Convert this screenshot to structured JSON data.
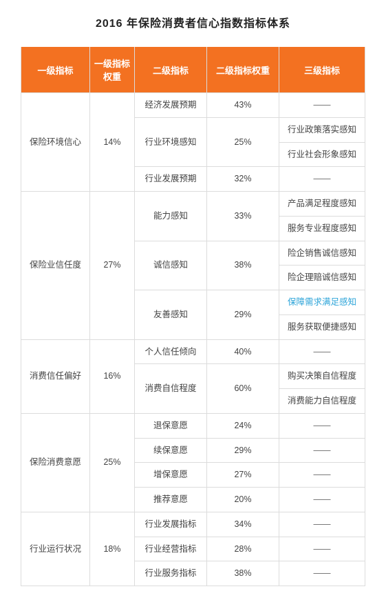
{
  "title": "2016 年保险消费者信心指数指标体系",
  "colors": {
    "header_bg": "#f37121",
    "header_text": "#ffffff",
    "border": "#dcdcdc",
    "text": "#444444",
    "highlight": "#2aa3d8",
    "background": "#ffffff"
  },
  "columns": [
    {
      "label": "一级指标",
      "width": "20%"
    },
    {
      "label": "一级指标权重",
      "width": "13%"
    },
    {
      "label": "二级指标",
      "width": "21%"
    },
    {
      "label": "二级指标权重",
      "width": "21%"
    },
    {
      "label": "三级指标",
      "width": "25%"
    }
  ],
  "dash": "——",
  "groups": [
    {
      "l1_label": "保险环境信心",
      "l1_weight": "14%",
      "l2": [
        {
          "label": "经济发展预期",
          "weight": "43%",
          "l3": [
            "——"
          ]
        },
        {
          "label": "行业环境感知",
          "weight": "25%",
          "l3": [
            "行业政策落实感知",
            "行业社会形象感知"
          ]
        },
        {
          "label": "行业发展预期",
          "weight": "32%",
          "l3": [
            "——"
          ]
        }
      ]
    },
    {
      "l1_label": "保险业信任度",
      "l1_weight": "27%",
      "l2": [
        {
          "label": "能力感知",
          "weight": "33%",
          "l3": [
            "产品满足程度感知",
            "服务专业程度感知"
          ]
        },
        {
          "label": "诚信感知",
          "weight": "38%",
          "l3": [
            "险企销售诚信感知",
            "险企理赔诚信感知"
          ]
        },
        {
          "label": "友善感知",
          "weight": "29%",
          "l3": [
            "保障需求满足感知",
            "服务获取便捷感知"
          ],
          "hl_index": 0
        }
      ]
    },
    {
      "l1_label": "消费信任偏好",
      "l1_weight": "16%",
      "l2": [
        {
          "label": "个人信任倾向",
          "weight": "40%",
          "l3": [
            "——"
          ]
        },
        {
          "label": "消费自信程度",
          "weight": "60%",
          "l3": [
            "购买决策自信程度",
            "消费能力自信程度"
          ]
        }
      ]
    },
    {
      "l1_label": "保险消费意愿",
      "l1_weight": "25%",
      "l2": [
        {
          "label": "退保意愿",
          "weight": "24%",
          "l3": [
            "——"
          ]
        },
        {
          "label": "续保意愿",
          "weight": "29%",
          "l3": [
            "——"
          ]
        },
        {
          "label": "增保意愿",
          "weight": "27%",
          "l3": [
            "——"
          ]
        },
        {
          "label": "推荐意愿",
          "weight": "20%",
          "l3": [
            "——"
          ]
        }
      ]
    },
    {
      "l1_label": "行业运行状况",
      "l1_weight": "18%",
      "l2": [
        {
          "label": "行业发展指标",
          "weight": "34%",
          "l3": [
            "——"
          ]
        },
        {
          "label": "行业经营指标",
          "weight": "28%",
          "l3": [
            "——"
          ]
        },
        {
          "label": "行业服务指标",
          "weight": "38%",
          "l3": [
            "——"
          ]
        }
      ]
    }
  ]
}
